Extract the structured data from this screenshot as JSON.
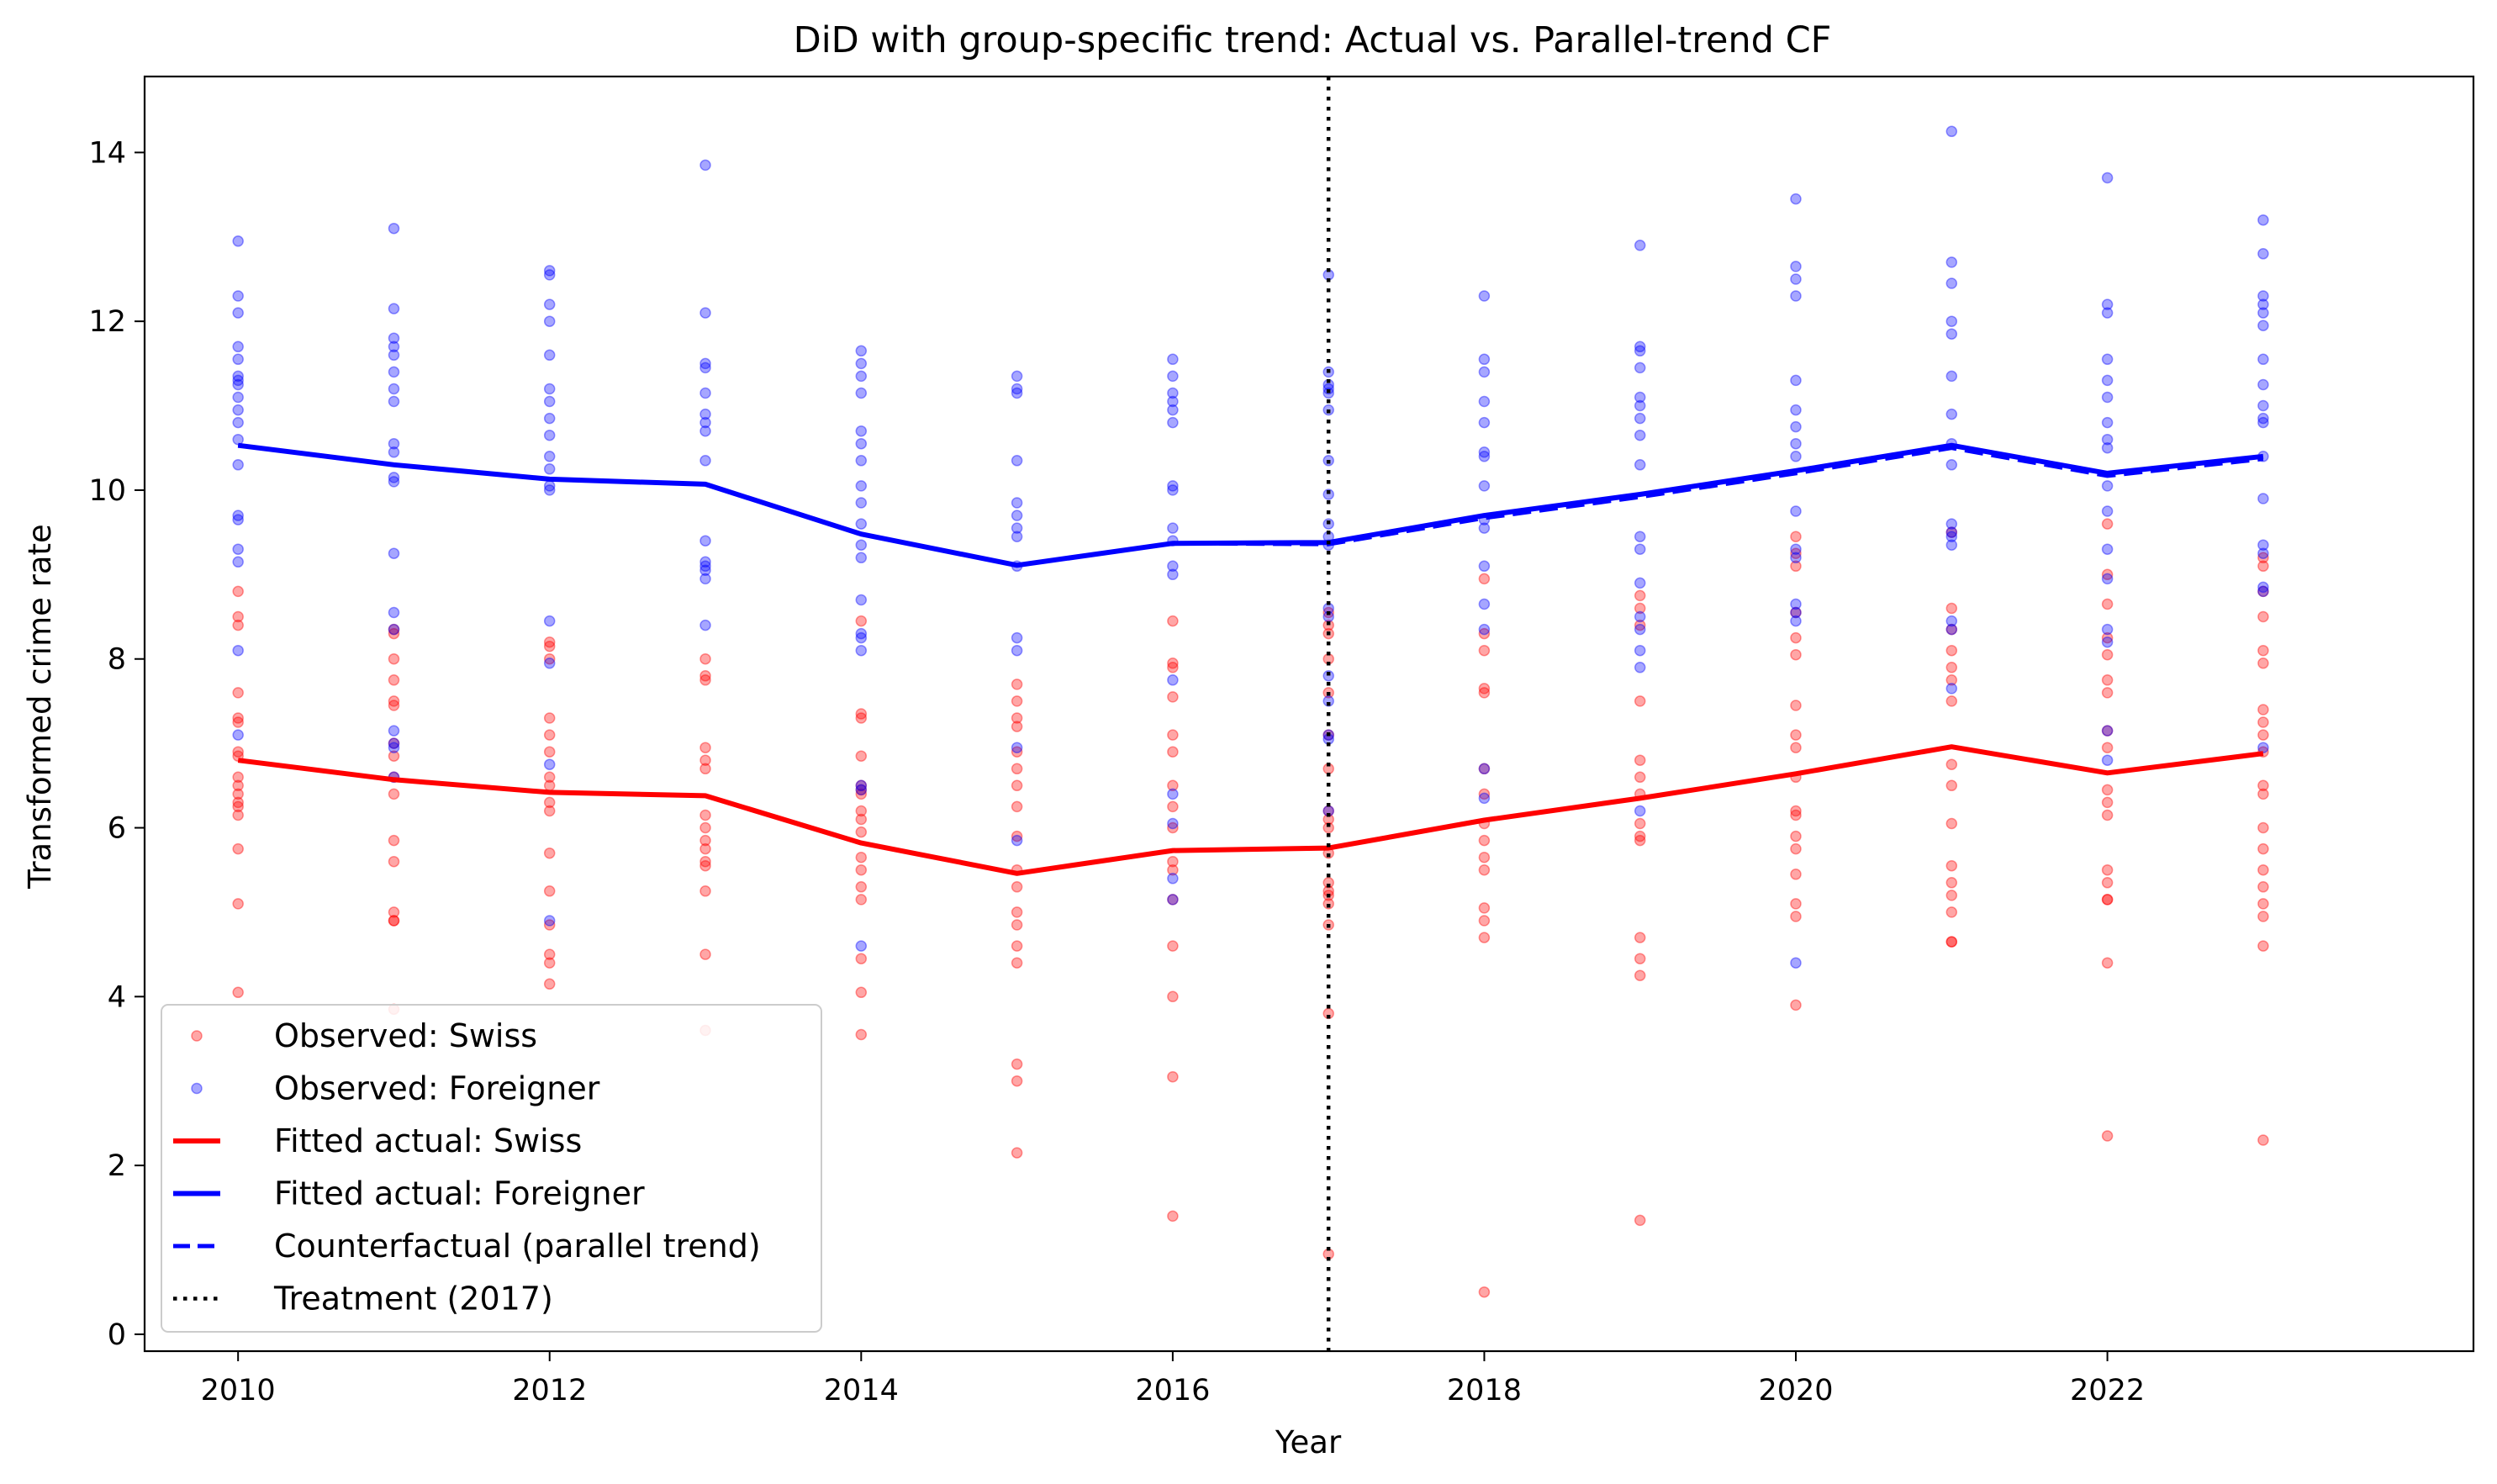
{
  "chart_data": {
    "type": "line",
    "title": "DiD with group-specific trend: Actual vs. Parallel-trend CF",
    "xlabel": "Year",
    "ylabel": "Transformed crime rate",
    "xlim": [
      2009.4,
      2024.35
    ],
    "ylim": [
      -0.2,
      14.9
    ],
    "xticks": [
      2010,
      2012,
      2014,
      2016,
      2018,
      2020,
      2022
    ],
    "yticks": [
      0,
      2,
      4,
      6,
      8,
      10,
      12,
      14
    ],
    "grid": false,
    "legend_position": "lower-left",
    "treatment_year": 2017,
    "x": [
      2010,
      2011,
      2012,
      2013,
      2014,
      2015,
      2016,
      2017,
      2018,
      2019,
      2020,
      2021,
      2022,
      2023
    ],
    "series": [
      {
        "name": "Observed: Swiss",
        "kind": "scatter",
        "color": "#ff0000",
        "opacity": 0.35,
        "points": {
          "2010": [
            8.8,
            8.5,
            8.4,
            7.6,
            7.3,
            7.25,
            6.9,
            6.85,
            6.6,
            6.5,
            6.4,
            6.3,
            6.25,
            6.15,
            5.75,
            5.1,
            4.05
          ],
          "2011": [
            8.35,
            8.3,
            8.0,
            7.75,
            7.5,
            7.45,
            7.0,
            6.85,
            6.6,
            6.4,
            5.85,
            5.6,
            5.0,
            4.9,
            4.9,
            3.85
          ],
          "2012": [
            8.2,
            8.15,
            8.0,
            7.3,
            7.1,
            6.9,
            6.6,
            6.5,
            6.3,
            6.2,
            5.7,
            5.25,
            4.85,
            4.5,
            4.4,
            4.15
          ],
          "2013": [
            8.0,
            7.8,
            7.75,
            6.95,
            6.8,
            6.7,
            6.15,
            6.0,
            5.85,
            5.75,
            5.6,
            5.55,
            5.25,
            4.5,
            3.6
          ],
          "2014": [
            8.45,
            7.35,
            7.3,
            6.85,
            6.5,
            6.45,
            6.4,
            6.2,
            6.1,
            5.95,
            5.65,
            5.5,
            5.3,
            5.15,
            4.45,
            4.05,
            3.55
          ],
          "2015": [
            7.7,
            7.5,
            7.3,
            7.2,
            6.9,
            6.7,
            6.5,
            6.25,
            5.9,
            5.5,
            5.3,
            5.0,
            4.85,
            4.6,
            4.4,
            3.2,
            3.0,
            2.15
          ],
          "2016": [
            8.45,
            7.95,
            7.9,
            7.55,
            7.1,
            6.9,
            6.5,
            6.25,
            6.0,
            5.6,
            5.5,
            5.15,
            4.6,
            4.0,
            3.05,
            1.4
          ],
          "2017": [
            8.55,
            8.4,
            8.3,
            8.0,
            7.6,
            7.1,
            6.7,
            6.2,
            6.1,
            6.0,
            5.7,
            5.35,
            5.25,
            5.2,
            5.1,
            4.85,
            3.8,
            0.95
          ],
          "2018": [
            8.95,
            8.3,
            8.1,
            7.65,
            7.6,
            6.7,
            6.4,
            6.05,
            5.85,
            5.65,
            5.5,
            5.05,
            4.9,
            4.7,
            0.5
          ],
          "2019": [
            8.75,
            8.6,
            8.4,
            7.5,
            6.8,
            6.6,
            6.4,
            6.05,
            5.9,
            5.85,
            4.7,
            4.45,
            4.25,
            1.35
          ],
          "2020": [
            9.45,
            9.25,
            9.1,
            8.55,
            8.25,
            8.05,
            7.45,
            7.1,
            6.95,
            6.6,
            6.2,
            6.15,
            5.9,
            5.75,
            5.45,
            5.1,
            4.95,
            3.9
          ],
          "2021": [
            9.5,
            8.6,
            8.35,
            8.1,
            7.9,
            7.75,
            7.5,
            6.75,
            6.5,
            6.05,
            5.55,
            5.35,
            5.2,
            5.0,
            4.65,
            4.65
          ],
          "2022": [
            9.6,
            9.0,
            8.65,
            8.25,
            8.05,
            7.75,
            7.6,
            7.15,
            6.95,
            6.45,
            6.3,
            6.15,
            5.5,
            5.35,
            5.15,
            5.15,
            4.4,
            2.35
          ],
          "2023": [
            9.2,
            9.1,
            8.8,
            8.5,
            8.1,
            7.95,
            7.4,
            7.25,
            7.1,
            6.9,
            6.5,
            6.4,
            6.0,
            5.75,
            5.5,
            5.3,
            5.1,
            4.95,
            4.6,
            2.3
          ]
        }
      },
      {
        "name": "Observed: Foreigner",
        "kind": "scatter",
        "color": "#0000ff",
        "opacity": 0.35,
        "points": {
          "2010": [
            12.95,
            12.3,
            12.1,
            11.7,
            11.55,
            11.35,
            11.3,
            11.25,
            11.1,
            10.95,
            10.8,
            10.6,
            10.3,
            9.7,
            9.65,
            9.3,
            9.15,
            8.1,
            7.1
          ],
          "2011": [
            13.1,
            12.15,
            11.8,
            11.7,
            11.6,
            11.4,
            11.2,
            11.05,
            10.55,
            10.45,
            10.15,
            10.1,
            9.25,
            8.55,
            8.35,
            7.15,
            7.0,
            6.95,
            6.6
          ],
          "2012": [
            12.6,
            12.55,
            12.2,
            12.0,
            11.6,
            11.2,
            11.05,
            10.85,
            10.65,
            10.4,
            10.25,
            10.05,
            10.0,
            8.45,
            7.95,
            6.75,
            4.9
          ],
          "2013": [
            13.85,
            12.1,
            11.5,
            11.45,
            11.15,
            10.9,
            10.8,
            10.7,
            10.35,
            9.4,
            9.15,
            9.1,
            9.05,
            8.95,
            8.4
          ],
          "2014": [
            11.65,
            11.5,
            11.35,
            11.15,
            10.7,
            10.55,
            10.35,
            10.05,
            9.85,
            9.6,
            9.35,
            9.2,
            8.7,
            8.3,
            8.25,
            8.1,
            6.5,
            6.45,
            4.6
          ],
          "2015": [
            11.35,
            11.2,
            11.15,
            10.35,
            9.85,
            9.7,
            9.55,
            9.45,
            9.1,
            8.25,
            8.1,
            6.95,
            5.85
          ],
          "2016": [
            11.55,
            11.35,
            11.15,
            11.05,
            10.95,
            10.8,
            10.05,
            10.0,
            9.55,
            9.4,
            9.1,
            9.0,
            7.75,
            6.4,
            6.05,
            5.4,
            5.15
          ],
          "2017": [
            12.55,
            11.4,
            11.25,
            11.2,
            11.15,
            10.95,
            10.35,
            9.95,
            9.6,
            9.45,
            9.35,
            8.6,
            8.5,
            7.8,
            7.5,
            7.1,
            7.05,
            6.2
          ],
          "2018": [
            12.3,
            11.55,
            11.4,
            11.05,
            10.8,
            10.45,
            10.4,
            10.05,
            9.65,
            9.55,
            9.1,
            8.65,
            8.35,
            6.7,
            6.35
          ],
          "2019": [
            12.9,
            11.7,
            11.65,
            11.45,
            11.1,
            11.0,
            10.85,
            10.65,
            10.3,
            9.45,
            9.3,
            8.9,
            8.5,
            8.35,
            8.1,
            7.9,
            6.2
          ],
          "2020": [
            13.45,
            12.65,
            12.5,
            12.3,
            11.3,
            10.95,
            10.75,
            10.55,
            10.4,
            9.75,
            9.3,
            9.2,
            8.65,
            8.55,
            8.45,
            4.4
          ],
          "2021": [
            14.25,
            12.7,
            12.45,
            12.0,
            11.85,
            11.35,
            10.9,
            10.55,
            10.3,
            9.6,
            9.5,
            9.45,
            9.35,
            8.45,
            8.35,
            7.65
          ],
          "2022": [
            13.7,
            12.2,
            12.1,
            11.55,
            11.3,
            11.1,
            10.8,
            10.6,
            10.5,
            10.05,
            9.75,
            9.3,
            8.95,
            8.35,
            8.2,
            7.15,
            6.8
          ],
          "2023": [
            13.2,
            12.8,
            12.3,
            12.2,
            12.1,
            11.95,
            11.55,
            11.25,
            11.0,
            10.85,
            10.8,
            10.4,
            9.9,
            9.35,
            9.25,
            8.85,
            8.8,
            6.95
          ]
        }
      },
      {
        "name": "Fitted actual: Swiss",
        "kind": "line",
        "color": "#ff0000",
        "values": [
          6.8,
          6.57,
          6.42,
          6.38,
          5.82,
          5.46,
          5.73,
          5.76,
          6.09,
          6.35,
          6.64,
          6.96,
          6.65,
          6.88
        ]
      },
      {
        "name": "Fitted actual: Foreigner",
        "kind": "line",
        "color": "#0000ff",
        "values": [
          10.53,
          10.3,
          10.13,
          10.07,
          9.48,
          9.11,
          9.37,
          9.38,
          9.7,
          9.95,
          10.23,
          10.53,
          10.2,
          10.4
        ]
      },
      {
        "name": "Counterfactual (parallel trend)",
        "kind": "dashed-line",
        "color": "#0000ff",
        "values": [
          10.53,
          10.3,
          10.13,
          10.07,
          9.48,
          9.11,
          9.37,
          9.36,
          9.67,
          9.92,
          10.2,
          10.5,
          10.17,
          10.37
        ]
      },
      {
        "name": "Treatment (2017)",
        "kind": "vline",
        "color": "#000000",
        "x": 2017
      }
    ]
  }
}
